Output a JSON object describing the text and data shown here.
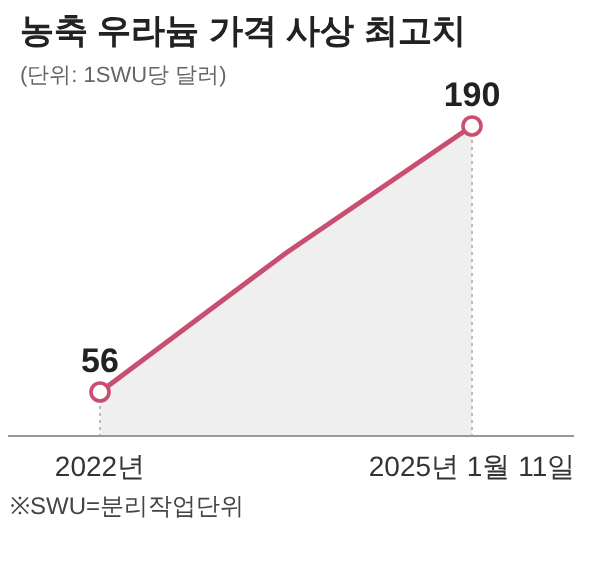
{
  "chart_data": {
    "type": "area",
    "title": "농축 우라늄 가격 사상 최고치",
    "subtitle": "(단위: 1SWU당 달러)",
    "categories": [
      "2022년",
      null,
      "2025년 1월 11일"
    ],
    "series": [
      {
        "color": "#c94f72",
        "values": [
          56,
          126,
          190
        ],
        "value_labels": [
          "56",
          null,
          "190"
        ]
      }
    ],
    "tick_labels": "x",
    "marker": "circle",
    "annotations": [
      "※SWU=분리작업단위"
    ]
  }
}
